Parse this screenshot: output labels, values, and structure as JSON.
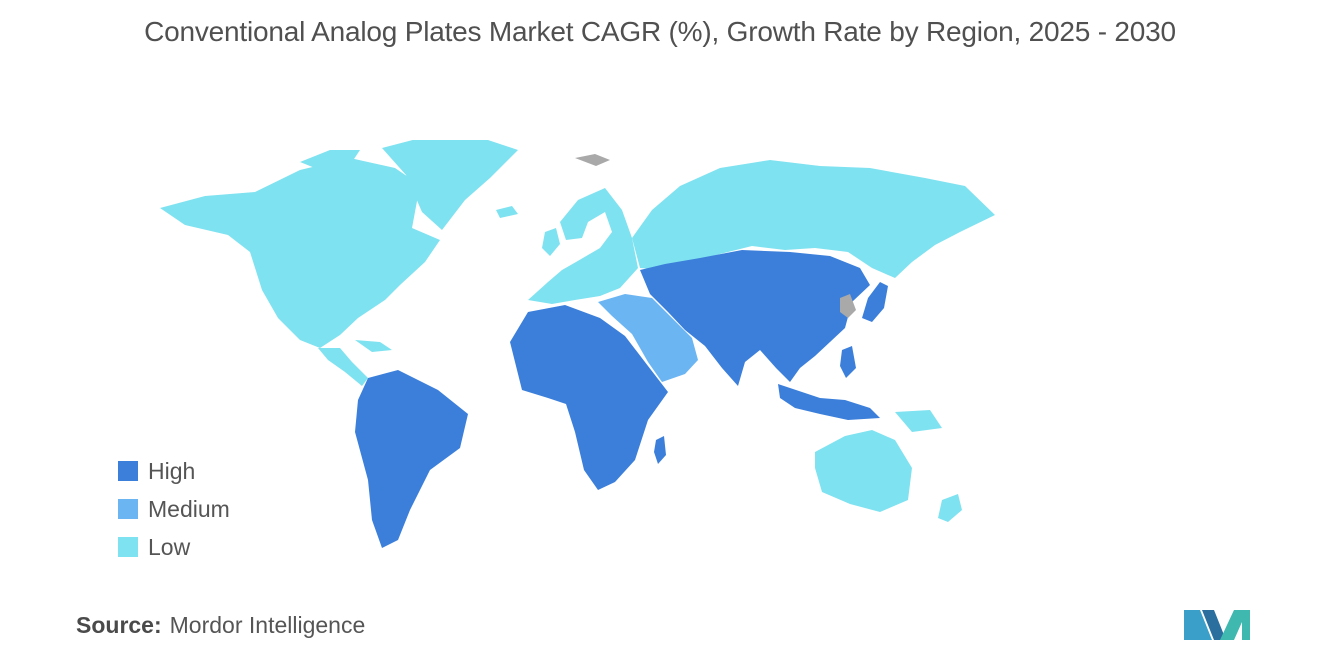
{
  "title": "Conventional Analog Plates Market CAGR (%), Growth Rate by Region, 2025 - 2030",
  "legend": [
    {
      "label": "High",
      "color": "#3b7fdb"
    },
    {
      "label": "Medium",
      "color": "#6bb5f3"
    },
    {
      "label": "Low",
      "color": "#7fe2f0"
    }
  ],
  "nodata_color": "#a9a9a9",
  "source": {
    "label": "Source:",
    "value": "Mordor Intelligence"
  },
  "regions": [
    {
      "name": "North America",
      "level": "Low"
    },
    {
      "name": "Europe",
      "level": "Low"
    },
    {
      "name": "Russia",
      "level": "Low"
    },
    {
      "name": "Oceania",
      "level": "Low"
    },
    {
      "name": "Middle East",
      "level": "Medium"
    },
    {
      "name": "Latin America",
      "level": "High"
    },
    {
      "name": "Africa",
      "level": "High"
    },
    {
      "name": "Asia",
      "level": "High"
    }
  ]
}
